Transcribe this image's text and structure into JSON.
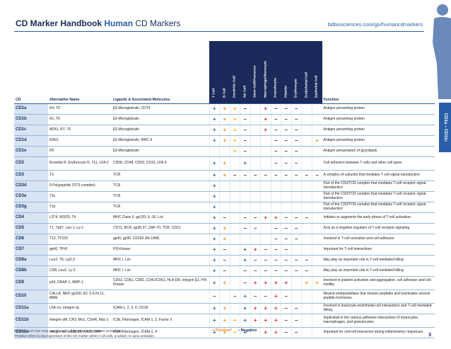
{
  "header": {
    "title": "CD Marker Handbook",
    "title_accent": "Human",
    "title_tail": "CD Markers",
    "url": "bdbiosciences.com/go/humancdmarkers"
  },
  "side_tab": "CD1a – CD11c",
  "table": {
    "columns": [
      "CD",
      "Alternative Name",
      "Ligands & Associated Molecules",
      "Function"
    ],
    "cell_types": [
      {
        "name": "T Cell",
        "color": "#2a5ea8"
      },
      {
        "name": "B Cell",
        "color": "#f08a1c"
      },
      {
        "name": "Dendritic Cell",
        "color": "#e8b810"
      },
      {
        "name": "NK Cell",
        "color": "#2a5ea8"
      },
      {
        "name": "Stem Cell/Precursor",
        "color": "#d8232c"
      },
      {
        "name": "Macrophage/Monocyte",
        "color": "#d8232c"
      },
      {
        "name": "Granulocyte",
        "color": "#d8232c"
      },
      {
        "name": "Platelet",
        "color": "#d8232c"
      },
      {
        "name": "Erythrocyte",
        "color": "#d8232c"
      },
      {
        "name": "Endothelial Cell",
        "color": "#f08a1c"
      },
      {
        "name": "Epithelial Cell",
        "color": "#f08a1c"
      }
    ],
    "rows": [
      {
        "cd": "CD1a",
        "alt": "R4, T6",
        "ligands": "β2-Microglobulin, CD74",
        "cells": [
          "+",
          "+",
          "+",
          "–",
          null,
          "+",
          "–",
          "–",
          "–",
          null,
          null
        ],
        "function": "Antigen presenting protein"
      },
      {
        "cd": "CD1b",
        "alt": "R1, T6",
        "ligands": "β2-Microglobulin",
        "cells": [
          "+",
          "+",
          "+",
          "–",
          null,
          "+",
          "–",
          "–",
          "–",
          null,
          null
        ],
        "function": "Antigen presenting protein"
      },
      {
        "cd": "CD1c",
        "alt": "M241, R7, T6",
        "ligands": "β2-Microglobulin",
        "cells": [
          "+",
          "+",
          "+",
          "–",
          null,
          "+",
          "–",
          "–",
          "–",
          null,
          null
        ],
        "function": "Antigen presenting protein"
      },
      {
        "cd": "CD1d",
        "alt": "R3G1",
        "ligands": "β2-Microglobulin, MHC II",
        "cells": [
          "+",
          "+",
          "+",
          "–",
          null,
          null,
          "–",
          "–",
          "–",
          null,
          "+"
        ],
        "function": "Antigen presenting protein"
      },
      {
        "cd": "CD1e",
        "alt": "R2",
        "ligands": "β2-Microglobulin",
        "cells": [
          null,
          null,
          "+",
          "–",
          null,
          null,
          "–",
          "–",
          "–",
          null,
          null
        ],
        "function": "Antigen presentation of glycolipids"
      },
      {
        "cd": "CD2",
        "alt": "Erosette R, Erythrocyte R, T11, LFA-2",
        "ligands": "CD58, CD48, CD59, CD15, LFA-3",
        "cells": [
          "+",
          "+",
          null,
          "+",
          null,
          null,
          "–",
          "–",
          "–",
          null,
          null
        ],
        "function": "Cell adhesion between T cells and other cell types"
      },
      {
        "cd": "CD3",
        "alt": "T3",
        "ligands": "TCR",
        "cells": [
          "+",
          "+",
          "–",
          "–",
          "–",
          "–",
          "–",
          "–",
          "–",
          "–",
          "–"
        ],
        "function": "A complex of subunits that mediates T cell signal transduction"
      },
      {
        "cd": "CD3d",
        "alt": "δ Polypeptide (TiT3 complex)",
        "ligands": "TCR",
        "cells": [
          "+",
          null,
          null,
          null,
          null,
          null,
          null,
          null,
          null,
          null,
          null
        ],
        "function": "Part of the CD3/TCR complex that mediates T-cell receptor signal transduction"
      },
      {
        "cd": "CD3e",
        "alt": "T3ε",
        "ligands": "TCR",
        "cells": [
          "+",
          null,
          null,
          null,
          null,
          null,
          null,
          null,
          null,
          null,
          null
        ],
        "function": "Part of the CD3/TCR complex that mediates T-cell receptor signal transduction"
      },
      {
        "cd": "CD3g",
        "alt": "T3γ",
        "ligands": "TCR",
        "cells": [
          "+",
          null,
          null,
          null,
          null,
          null,
          null,
          null,
          null,
          null,
          null
        ],
        "function": "Part of the CD3/TCR complex that mediates T-cell receptor signal transduction"
      },
      {
        "cd": "CD4",
        "alt": "L3T4, W3/25, T4",
        "ligands": "MHC Class II, gp120, IL-16, Lck",
        "cells": [
          "+",
          "–",
          null,
          "–",
          "–",
          "+",
          "+",
          "–",
          "–",
          "–",
          null
        ],
        "function": "Initiates or augments the early phase of T-cell activation."
      },
      {
        "cd": "CD5",
        "alt": "T1, Tp67, Leu-1, Ly-1",
        "ligands": "CD72, BCR, gp35-37, ZAP-70, TCR, CD21",
        "cells": [
          "+",
          "+",
          null,
          "–",
          "–",
          null,
          "–",
          "–",
          "–",
          null,
          null
        ],
        "function": "Acts as a negative regulator of T-cell receptor signaling"
      },
      {
        "cd": "CD6",
        "alt": "T12, TP120",
        "ligands": "gp40, gp90, CD166 (ALCAM)",
        "cells": [
          "+",
          "+",
          null,
          null,
          null,
          null,
          "–",
          "–",
          "–",
          null,
          null
        ],
        "function": "Involved in T-cell activation and cell adhesion"
      },
      {
        "cd": "CD7",
        "alt": "gp40, TP41",
        "ligands": "PI3-Kinase",
        "cells": [
          "+",
          "–",
          null,
          "+",
          "+",
          "–",
          "–",
          "–",
          null,
          null,
          null
        ],
        "function": "Important for T-cell interactions"
      },
      {
        "cd": "CD8a",
        "alt": "Leu2, T8, Lyt2,3",
        "ligands": "MHC I, Lck",
        "cells": [
          "+",
          "–",
          null,
          "+",
          "–",
          "–",
          "–",
          "–",
          "–",
          "–",
          null
        ],
        "function": "May play an important role in T-cell mediated killing"
      },
      {
        "cd": "CD8b",
        "alt": "CD8, Leu2, Ly-3",
        "ligands": "MHC I, Lck",
        "cells": [
          "+",
          "–",
          null,
          "–",
          "–",
          "–",
          "–",
          "–",
          "–",
          "–",
          null
        ],
        "function": "May play an important role in T-cell mediated killing"
      },
      {
        "cd": "CD9",
        "alt": "p24, DRAP-1, MRP-1",
        "ligands": "CD63, CD81, CD82, CD41/CD61, HLA-DR, Integrin β1, PI4-Kinase",
        "cells": [
          "+",
          "+",
          null,
          "–",
          "+",
          "+",
          "+",
          "+",
          null,
          "+",
          "+"
        ],
        "function": "Involved in platelet activation and aggregation, cell adhesion and cell motility"
      },
      {
        "cd": "CD10",
        "alt": "CALLA, NEP, gp100, EC 3.4.24.11, MME",
        "ligands": null,
        "cells": [
          "–",
          null,
          "–",
          "+",
          "–",
          "–",
          "+",
          "–",
          null,
          null,
          null
        ],
        "function": "Neutral endopeptidase that cleaves peptides and inactivates several peptide hormones."
      },
      {
        "cd": "CD11a",
        "alt": "LFA-1α, Integrin αL",
        "ligands": "ICAM-1, 2, 3, 4, CD18",
        "cells": [
          "+",
          "+",
          null,
          "+",
          "+",
          "+",
          "+",
          "–",
          "–",
          null,
          null
        ],
        "function": "Involved in leukocyte-endothelial cell interactions and T-cell mediated killing"
      },
      {
        "cd": "CD11b",
        "alt": "Integrin αM, CR3, Mo1, C3niR, Mac-1",
        "ligands": "iC3b, Fibrinogen, ICAM-1, 2, Factor X",
        "cells": [
          "+",
          "+",
          "+",
          "+",
          "+",
          "+",
          "+",
          "–",
          "–",
          null,
          null
        ],
        "function": "Implicated in the various adhesive interactions of monocytes, macrophages, and granulocytes."
      },
      {
        "cd": "CD11c",
        "alt": "Integrin αX, p150,95, AXb2, CR4",
        "ligands": "iC3b, Fibrinogen, ICAM-1, 4",
        "cells": [
          "+",
          "+",
          "+",
          "+",
          null,
          "+",
          "+",
          "–",
          "–",
          null,
          null
        ],
        "function": "Important for cell-cell interaction during inflammatory responses."
      }
    ]
  },
  "footer": {
    "note1": "For Research Use Only. Not for use in diagnostic or therapeutic procedures.",
    "note2": "*Positive refers to any expression of this CD marker either in all cells, a subset, or upon activation.",
    "legend_positive": "+ Positive*",
    "legend_negative": "– Negative",
    "page": "3"
  }
}
